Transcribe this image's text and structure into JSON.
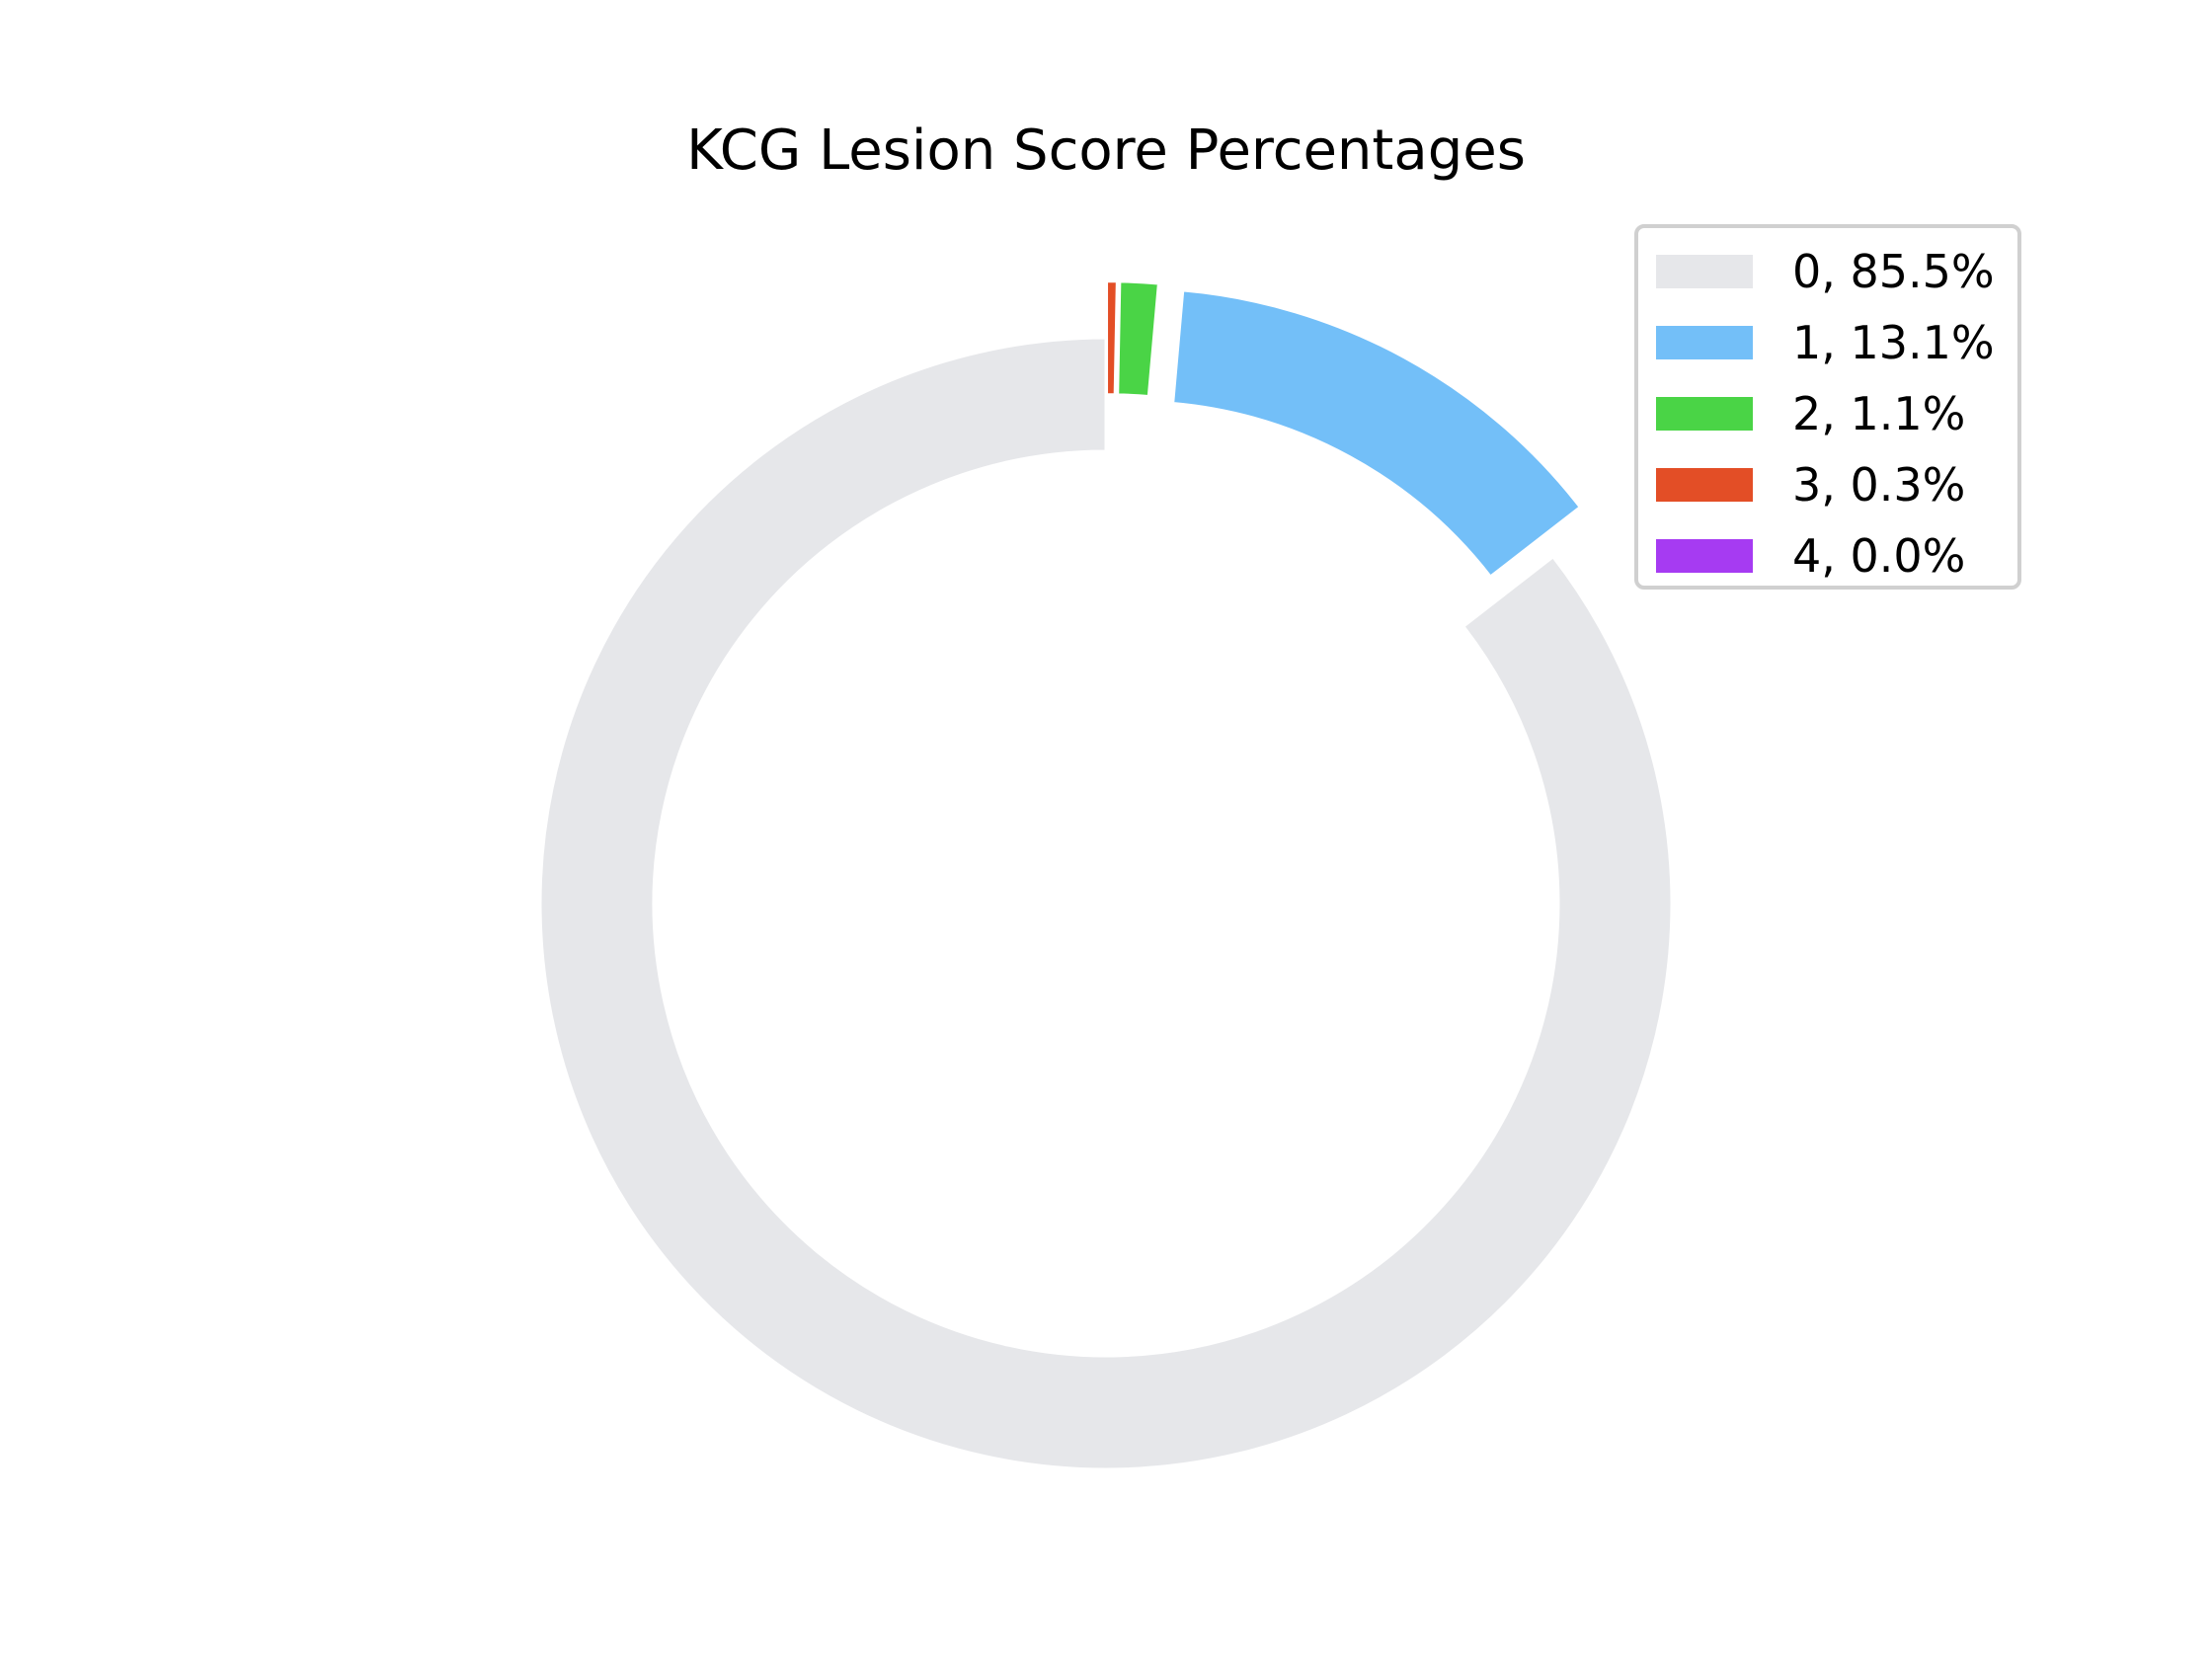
{
  "chart_data": {
    "type": "pie",
    "variant": "donut",
    "title": "KCG Lesion Score Percentages",
    "legend_placement": "top-right",
    "slices": [
      {
        "label": "0",
        "value": 85.5,
        "color": "#e6e7ea",
        "exploded": false,
        "legend_text": "0, 85.5%"
      },
      {
        "label": "1",
        "value": 13.1,
        "color": "#73bff8",
        "exploded": true,
        "legend_text": "1, 13.1%"
      },
      {
        "label": "2",
        "value": 1.1,
        "color": "#4ad446",
        "exploded": true,
        "legend_text": "2, 1.1%"
      },
      {
        "label": "3",
        "value": 0.3,
        "color": "#e34e26",
        "exploded": true,
        "legend_text": "3, 0.3%"
      },
      {
        "label": "4",
        "value": 0.0,
        "color": "#a63bf2",
        "exploded": true,
        "legend_text": "4, 0.0%"
      }
    ]
  }
}
